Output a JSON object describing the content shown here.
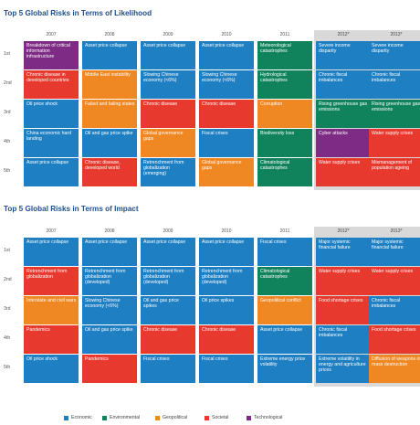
{
  "colors": {
    "Economic": "#1e7fc2",
    "Environmental": "#10835c",
    "Geopolitical": "#ef8722",
    "Societal": "#e8392e",
    "Technological": "#7d2b84"
  },
  "legend": [
    "Economic",
    "Environmental",
    "Geopolitical",
    "Societal",
    "Technological"
  ],
  "chart_data": [
    {
      "type": "table",
      "title": "Top 5 Global Risks in Terms of Likelihood",
      "years": [
        "2007",
        "2008",
        "2009",
        "2010",
        "2011",
        "2012*",
        "2013*"
      ],
      "ranks": [
        "1st",
        "2nd",
        "3rd",
        "4th",
        "5th"
      ],
      "rows": [
        [
          {
            "text": "Breakdown of critical information infrastructure",
            "category": "Technological"
          },
          {
            "text": "Asset price collapse",
            "category": "Economic"
          },
          {
            "text": "Asset price collapse",
            "category": "Economic"
          },
          {
            "text": "Asset price collapse",
            "category": "Economic"
          },
          {
            "text": "Meteorological catastrophes",
            "category": "Environmental"
          },
          {
            "text": "Severe income disparity",
            "category": "Economic"
          },
          {
            "text": "Severe income disparity",
            "category": "Economic"
          }
        ],
        [
          {
            "text": "Chronic disease in developed countries",
            "category": "Societal"
          },
          {
            "text": "Middle East instability",
            "category": "Geopolitical"
          },
          {
            "text": "Slowing Chinese economy (<6%)",
            "category": "Economic"
          },
          {
            "text": "Slowing Chinese economy (<6%)",
            "category": "Economic"
          },
          {
            "text": "Hydrological catastrophes",
            "category": "Environmental"
          },
          {
            "text": "Chronic fiscal imbalances",
            "category": "Economic"
          },
          {
            "text": "Chronic fiscal imbalances",
            "category": "Economic"
          }
        ],
        [
          {
            "text": "Oil price shock",
            "category": "Economic"
          },
          {
            "text": "Failed and failing states",
            "category": "Geopolitical"
          },
          {
            "text": "Chronic disease",
            "category": "Societal"
          },
          {
            "text": "Chronic disease",
            "category": "Societal"
          },
          {
            "text": "Corruption",
            "category": "Geopolitical"
          },
          {
            "text": "Rising greenhouse gas emissions",
            "category": "Environmental"
          },
          {
            "text": "Rising greenhouse gas emissions",
            "category": "Environmental"
          }
        ],
        [
          {
            "text": "China economic hard landing",
            "category": "Economic"
          },
          {
            "text": "Oil and gas price spike",
            "category": "Economic"
          },
          {
            "text": "Global governance gaps",
            "category": "Geopolitical"
          },
          {
            "text": "Fiscal crises",
            "category": "Economic"
          },
          {
            "text": "Biodiversity loss",
            "category": "Environmental"
          },
          {
            "text": "Cyber attacks",
            "category": "Technological"
          },
          {
            "text": "Water supply crises",
            "category": "Societal"
          }
        ],
        [
          {
            "text": "Asset price collapse",
            "category": "Economic"
          },
          {
            "text": "Chronic disease, developed world",
            "category": "Societal"
          },
          {
            "text": "Retrenchment from globalization (emerging)",
            "category": "Economic"
          },
          {
            "text": "Global governance gaps",
            "category": "Geopolitical"
          },
          {
            "text": "Climatological catastrophes",
            "category": "Environmental"
          },
          {
            "text": "Water supply crises",
            "category": "Societal"
          },
          {
            "text": "Mismanagement of population ageing",
            "category": "Societal"
          }
        ]
      ]
    },
    {
      "type": "table",
      "title": "Top 5 Global Risks in Terms of Impact",
      "years": [
        "2007",
        "2008",
        "2009",
        "2010",
        "2011",
        "2012*",
        "2013*"
      ],
      "ranks": [
        "1st",
        "2nd",
        "3rd",
        "4th",
        "5th"
      ],
      "rows": [
        [
          {
            "text": "Asset price collapse",
            "category": "Economic"
          },
          {
            "text": "Asset price collapse",
            "category": "Economic"
          },
          {
            "text": "Asset price collapse",
            "category": "Economic"
          },
          {
            "text": "Asset price collapse",
            "category": "Economic"
          },
          {
            "text": "Fiscal crises",
            "category": "Economic"
          },
          {
            "text": "Major systemic financial failure",
            "category": "Economic"
          },
          {
            "text": "Major systemic financial failure",
            "category": "Economic"
          }
        ],
        [
          {
            "text": "Retrenchment from globalization",
            "category": "Societal"
          },
          {
            "text": "Retrenchment from globalization (developed)",
            "category": "Economic"
          },
          {
            "text": "Retrenchment from globalization (developed)",
            "category": "Economic"
          },
          {
            "text": "Retrenchment from globalization (developed)",
            "category": "Economic"
          },
          {
            "text": "Climatological catastrophes",
            "category": "Environmental"
          },
          {
            "text": "Water supply crises",
            "category": "Societal"
          },
          {
            "text": "Water supply crises",
            "category": "Societal"
          }
        ],
        [
          {
            "text": "Interstate and civil wars",
            "category": "Geopolitical"
          },
          {
            "text": "Slowing Chinese economy (<6%)",
            "category": "Economic"
          },
          {
            "text": "Oil and gas price spikes",
            "category": "Economic"
          },
          {
            "text": "Oil price spikes",
            "category": "Economic"
          },
          {
            "text": "Geopolitical conflict",
            "category": "Geopolitical"
          },
          {
            "text": "Food shortage crises",
            "category": "Societal"
          },
          {
            "text": "Chronic fiscal imbalances",
            "category": "Economic"
          }
        ],
        [
          {
            "text": "Pandemics",
            "category": "Societal"
          },
          {
            "text": "Oil and gas price spike",
            "category": "Economic"
          },
          {
            "text": "Chronic disease",
            "category": "Societal"
          },
          {
            "text": "Chronic disease",
            "category": "Societal"
          },
          {
            "text": "Asset price collapse",
            "category": "Economic"
          },
          {
            "text": "Chronic fiscal imbalances",
            "category": "Economic"
          },
          {
            "text": "Food shortage crises",
            "category": "Societal"
          }
        ],
        [
          {
            "text": "Oil price shock",
            "category": "Economic"
          },
          {
            "text": "Pandemics",
            "category": "Societal"
          },
          {
            "text": "Fiscal crises",
            "category": "Economic"
          },
          {
            "text": "Fiscal crises",
            "category": "Economic"
          },
          {
            "text": "Extreme energy price volatility",
            "category": "Economic"
          },
          {
            "text": "Extreme volatility in energy and agriculture prices",
            "category": "Economic"
          },
          {
            "text": "Diffusion of weapons of mass destruction",
            "category": "Geopolitical"
          }
        ]
      ]
    }
  ]
}
